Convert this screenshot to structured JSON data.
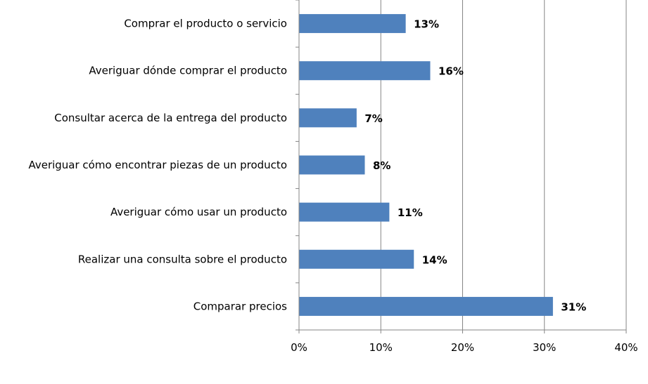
{
  "chart_data": {
    "type": "bar",
    "orientation": "horizontal",
    "categories": [
      "Comprar el producto o servicio",
      "Averiguar dónde comprar el producto",
      "Consultar acerca de la entrega del producto",
      "Averiguar cómo encontrar piezas de un producto",
      "Averiguar cómo usar un producto",
      "Realizar una consulta sobre el producto",
      "Comparar precios"
    ],
    "values": [
      13,
      16,
      7,
      8,
      11,
      14,
      31
    ],
    "data_labels": [
      "13%",
      "16%",
      "7%",
      "8%",
      "11%",
      "14%",
      "31%"
    ],
    "xlim": [
      0,
      40
    ],
    "x_ticks": [
      "0%",
      "10%",
      "20%",
      "30%",
      "40%"
    ],
    "grid": "vertical",
    "legend": "none",
    "bar_color": "#4F81BD",
    "title": "",
    "xlabel": "",
    "ylabel": ""
  }
}
